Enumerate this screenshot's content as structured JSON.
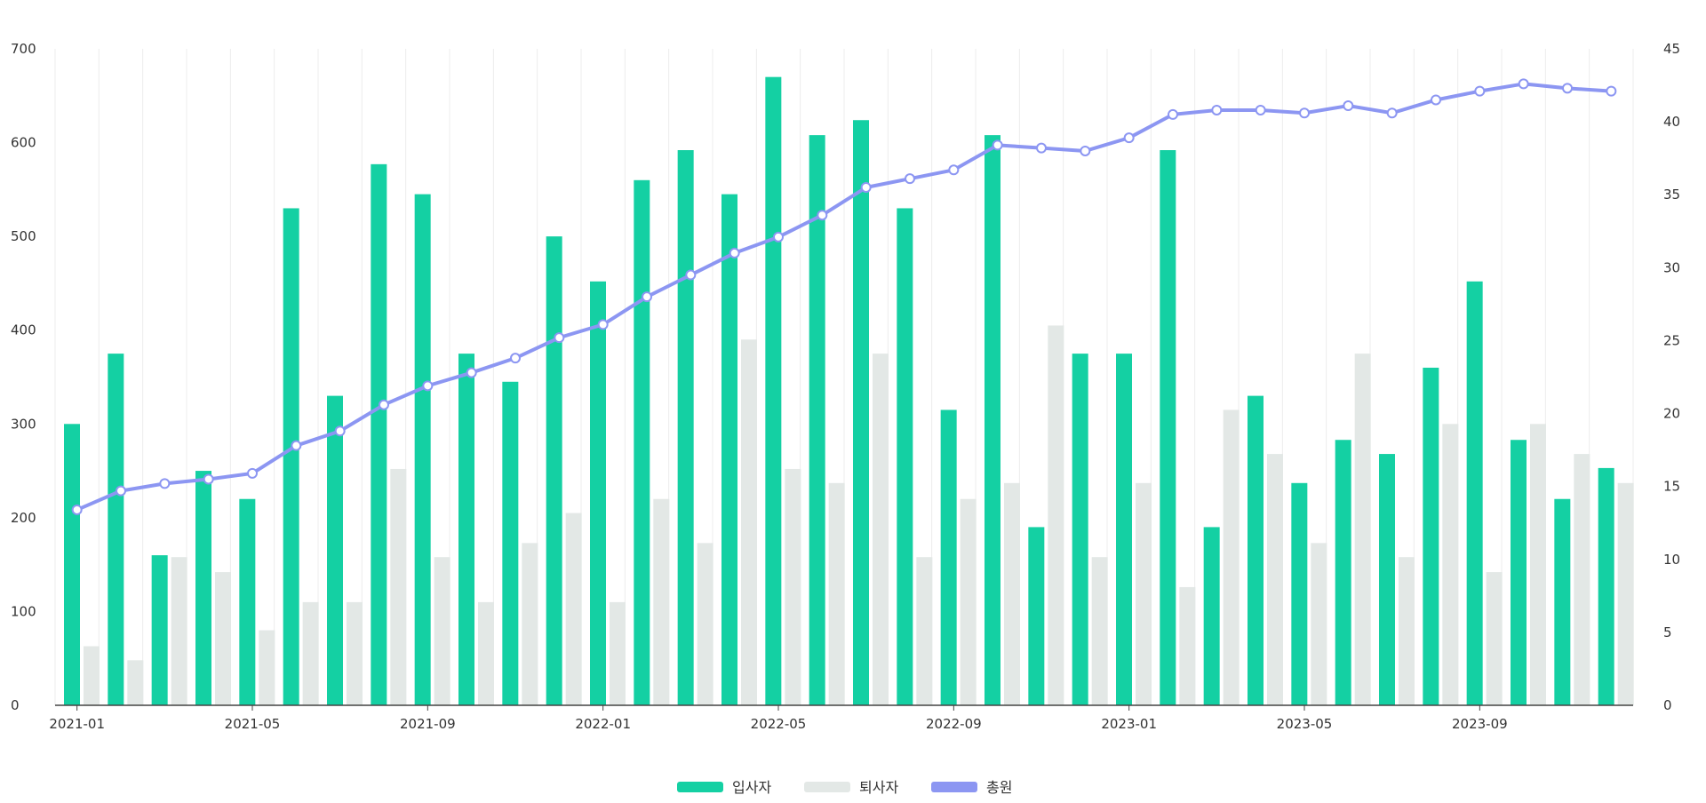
{
  "chart_data": {
    "type": "bar",
    "categories": [
      "2021-01",
      "2021-02",
      "2021-03",
      "2021-04",
      "2021-05",
      "2021-06",
      "2021-07",
      "2021-08",
      "2021-09",
      "2021-10",
      "2021-11",
      "2021-12",
      "2022-01",
      "2022-02",
      "2022-03",
      "2022-04",
      "2022-05",
      "2022-06",
      "2022-07",
      "2022-08",
      "2022-09",
      "2022-10",
      "2022-11",
      "2022-12",
      "2023-01",
      "2023-02",
      "2023-03",
      "2023-04",
      "2023-05",
      "2023-06",
      "2023-07",
      "2023-08",
      "2023-09",
      "2023-10",
      "2023-11",
      "2023-12"
    ],
    "x_tick_labels": [
      "2021-01",
      "2021-05",
      "2021-09",
      "2022-01",
      "2022-05",
      "2022-09",
      "2023-01",
      "2023-05",
      "2023-09"
    ],
    "series": [
      {
        "name": "입사자",
        "type": "bar",
        "axis": "left",
        "color": "#14d0a3",
        "values": [
          300,
          375,
          160,
          250,
          220,
          530,
          330,
          577,
          545,
          375,
          345,
          500,
          452,
          560,
          592,
          545,
          670,
          608,
          624,
          530,
          315,
          608,
          190,
          375,
          375,
          592,
          190,
          330,
          237,
          283,
          268,
          360,
          452,
          283,
          220,
          253
        ]
      },
      {
        "name": "퇴사자",
        "type": "bar",
        "axis": "left",
        "color": "#e3e8e6",
        "values": [
          63,
          48,
          158,
          142,
          80,
          110,
          110,
          252,
          158,
          110,
          173,
          205,
          110,
          220,
          173,
          390,
          252,
          237,
          375,
          158,
          220,
          237,
          405,
          158,
          237,
          126,
          315,
          268,
          173,
          375,
          158,
          300,
          142,
          300,
          268,
          237
        ]
      },
      {
        "name": "총원",
        "type": "line",
        "axis": "right",
        "color": "#8c96f2",
        "values": [
          13.4,
          14.7,
          15.2,
          15.5,
          15.9,
          17.8,
          18.8,
          20.6,
          21.9,
          22.8,
          23.8,
          25.2,
          26.1,
          28.0,
          29.5,
          31.0,
          32.1,
          33.6,
          35.5,
          36.1,
          36.7,
          38.4,
          38.2,
          38.0,
          38.9,
          40.5,
          40.8,
          40.8,
          40.6,
          41.1,
          40.6,
          41.5,
          42.1,
          42.6,
          42.3,
          42.1
        ]
      }
    ],
    "y_left": {
      "ticks": [
        "0",
        "100",
        "200",
        "300",
        "400",
        "500",
        "600",
        "700"
      ],
      "min": 0,
      "max": 700
    },
    "y_right": {
      "ticks": [
        "0",
        "5",
        "10",
        "15",
        "20",
        "25",
        "30",
        "35",
        "40",
        "45"
      ],
      "min": 0,
      "max": 45
    },
    "legend_position": "bottom-center",
    "grid": "vertical"
  }
}
